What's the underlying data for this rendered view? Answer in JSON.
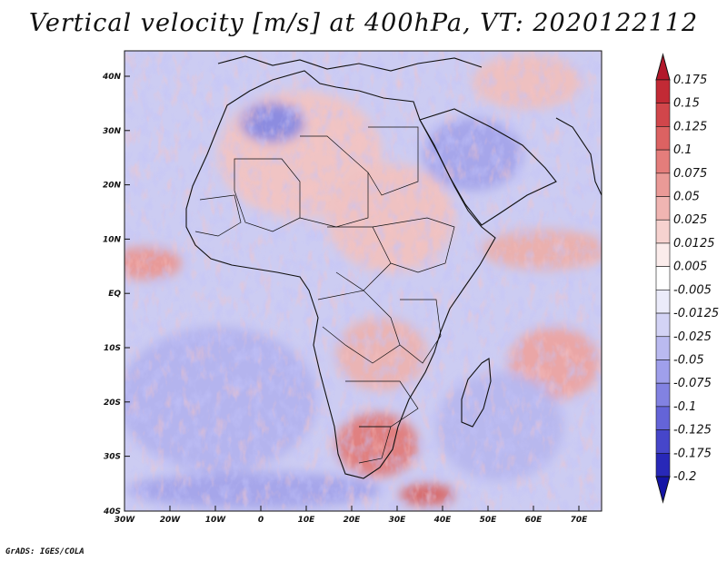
{
  "title": "Vertical velocity [m/s] at 400hPa, VT: 2020122112",
  "credit": "GrADS: IGES/COLA",
  "map": {
    "lat_labels": [
      "40N",
      "30N",
      "20N",
      "10N",
      "EQ",
      "10S",
      "20S",
      "30S",
      "40S"
    ],
    "lon_labels": [
      "30W",
      "20W",
      "10W",
      "0",
      "10E",
      "20E",
      "30E",
      "40E",
      "50E",
      "60E",
      "70E"
    ],
    "lat_range": [
      -40,
      45
    ],
    "lon_range": [
      -30,
      75
    ]
  },
  "colorbar": {
    "levels": [
      "0.175",
      "0.15",
      "0.125",
      "0.1",
      "0.075",
      "0.05",
      "0.025",
      "0.0125",
      "0.005",
      "-0.005",
      "-0.0125",
      "-0.025",
      "-0.05",
      "-0.075",
      "-0.1",
      "-0.125",
      "-0.175",
      "-0.2"
    ],
    "colors": [
      "#b2182b",
      "#c22a35",
      "#d1464b",
      "#dc6262",
      "#e47d7b",
      "#ea9a97",
      "#f0b5b2",
      "#f6d2cf",
      "#fbeceb",
      "#ffffff",
      "#ebebfa",
      "#d3d3f5",
      "#babaf0",
      "#9f9feb",
      "#8282e2",
      "#6464d8",
      "#4646ca",
      "#2828b8",
      "#1414a6"
    ]
  }
}
